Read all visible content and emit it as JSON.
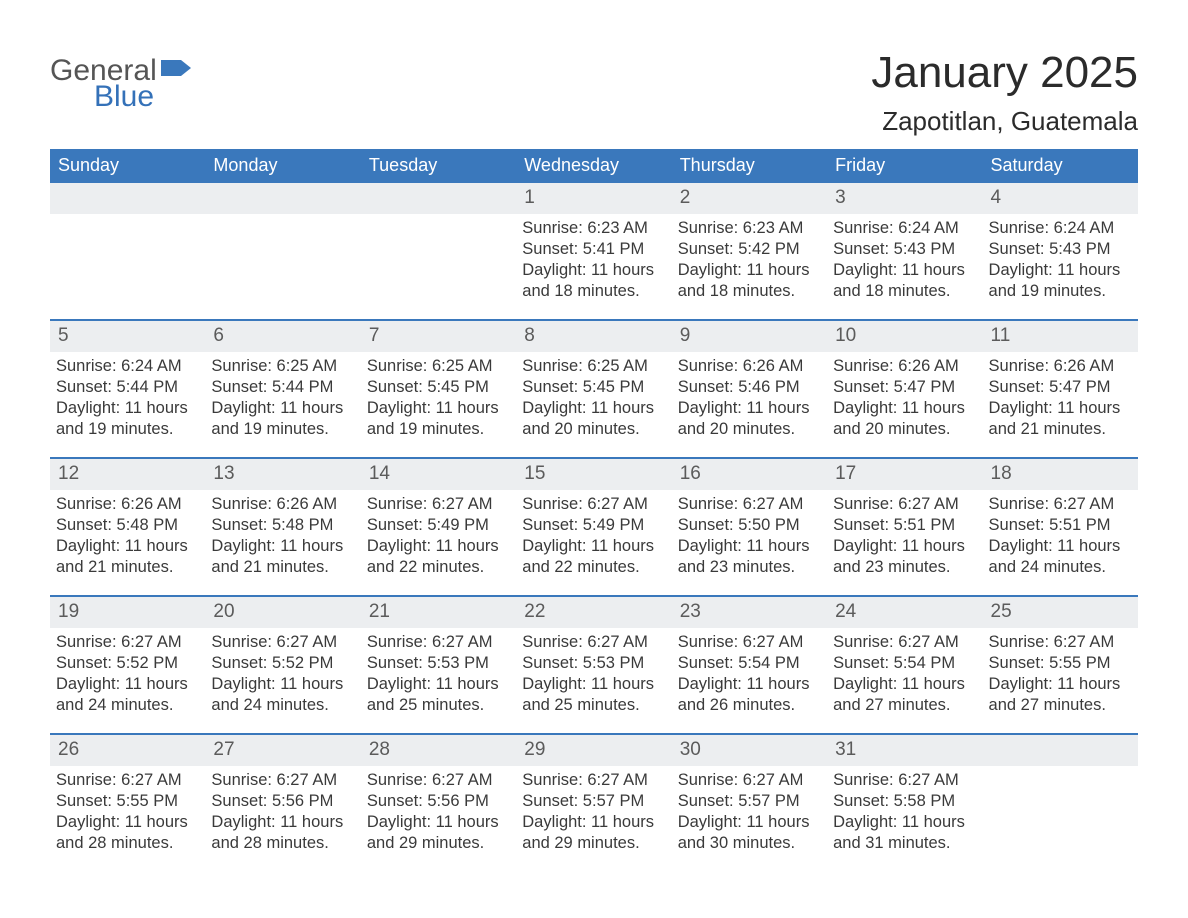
{
  "logo": {
    "general": "General",
    "blue": "Blue"
  },
  "title": "January 2025",
  "location": "Zapotitlan, Guatemala",
  "colors": {
    "header_bg": "#3a78bc",
    "row_stripe": "#eceef0",
    "text": "#3a3a3a",
    "accent": "#3471b8"
  },
  "daysOfWeek": [
    "Sunday",
    "Monday",
    "Tuesday",
    "Wednesday",
    "Thursday",
    "Friday",
    "Saturday"
  ],
  "weeks": [
    [
      null,
      null,
      null,
      {
        "n": "1",
        "sr": "Sunrise: 6:23 AM",
        "ss": "Sunset: 5:41 PM",
        "dl1": "Daylight: 11 hours",
        "dl2": "and 18 minutes."
      },
      {
        "n": "2",
        "sr": "Sunrise: 6:23 AM",
        "ss": "Sunset: 5:42 PM",
        "dl1": "Daylight: 11 hours",
        "dl2": "and 18 minutes."
      },
      {
        "n": "3",
        "sr": "Sunrise: 6:24 AM",
        "ss": "Sunset: 5:43 PM",
        "dl1": "Daylight: 11 hours",
        "dl2": "and 18 minutes."
      },
      {
        "n": "4",
        "sr": "Sunrise: 6:24 AM",
        "ss": "Sunset: 5:43 PM",
        "dl1": "Daylight: 11 hours",
        "dl2": "and 19 minutes."
      }
    ],
    [
      {
        "n": "5",
        "sr": "Sunrise: 6:24 AM",
        "ss": "Sunset: 5:44 PM",
        "dl1": "Daylight: 11 hours",
        "dl2": "and 19 minutes."
      },
      {
        "n": "6",
        "sr": "Sunrise: 6:25 AM",
        "ss": "Sunset: 5:44 PM",
        "dl1": "Daylight: 11 hours",
        "dl2": "and 19 minutes."
      },
      {
        "n": "7",
        "sr": "Sunrise: 6:25 AM",
        "ss": "Sunset: 5:45 PM",
        "dl1": "Daylight: 11 hours",
        "dl2": "and 19 minutes."
      },
      {
        "n": "8",
        "sr": "Sunrise: 6:25 AM",
        "ss": "Sunset: 5:45 PM",
        "dl1": "Daylight: 11 hours",
        "dl2": "and 20 minutes."
      },
      {
        "n": "9",
        "sr": "Sunrise: 6:26 AM",
        "ss": "Sunset: 5:46 PM",
        "dl1": "Daylight: 11 hours",
        "dl2": "and 20 minutes."
      },
      {
        "n": "10",
        "sr": "Sunrise: 6:26 AM",
        "ss": "Sunset: 5:47 PM",
        "dl1": "Daylight: 11 hours",
        "dl2": "and 20 minutes."
      },
      {
        "n": "11",
        "sr": "Sunrise: 6:26 AM",
        "ss": "Sunset: 5:47 PM",
        "dl1": "Daylight: 11 hours",
        "dl2": "and 21 minutes."
      }
    ],
    [
      {
        "n": "12",
        "sr": "Sunrise: 6:26 AM",
        "ss": "Sunset: 5:48 PM",
        "dl1": "Daylight: 11 hours",
        "dl2": "and 21 minutes."
      },
      {
        "n": "13",
        "sr": "Sunrise: 6:26 AM",
        "ss": "Sunset: 5:48 PM",
        "dl1": "Daylight: 11 hours",
        "dl2": "and 21 minutes."
      },
      {
        "n": "14",
        "sr": "Sunrise: 6:27 AM",
        "ss": "Sunset: 5:49 PM",
        "dl1": "Daylight: 11 hours",
        "dl2": "and 22 minutes."
      },
      {
        "n": "15",
        "sr": "Sunrise: 6:27 AM",
        "ss": "Sunset: 5:49 PM",
        "dl1": "Daylight: 11 hours",
        "dl2": "and 22 minutes."
      },
      {
        "n": "16",
        "sr": "Sunrise: 6:27 AM",
        "ss": "Sunset: 5:50 PM",
        "dl1": "Daylight: 11 hours",
        "dl2": "and 23 minutes."
      },
      {
        "n": "17",
        "sr": "Sunrise: 6:27 AM",
        "ss": "Sunset: 5:51 PM",
        "dl1": "Daylight: 11 hours",
        "dl2": "and 23 minutes."
      },
      {
        "n": "18",
        "sr": "Sunrise: 6:27 AM",
        "ss": "Sunset: 5:51 PM",
        "dl1": "Daylight: 11 hours",
        "dl2": "and 24 minutes."
      }
    ],
    [
      {
        "n": "19",
        "sr": "Sunrise: 6:27 AM",
        "ss": "Sunset: 5:52 PM",
        "dl1": "Daylight: 11 hours",
        "dl2": "and 24 minutes."
      },
      {
        "n": "20",
        "sr": "Sunrise: 6:27 AM",
        "ss": "Sunset: 5:52 PM",
        "dl1": "Daylight: 11 hours",
        "dl2": "and 24 minutes."
      },
      {
        "n": "21",
        "sr": "Sunrise: 6:27 AM",
        "ss": "Sunset: 5:53 PM",
        "dl1": "Daylight: 11 hours",
        "dl2": "and 25 minutes."
      },
      {
        "n": "22",
        "sr": "Sunrise: 6:27 AM",
        "ss": "Sunset: 5:53 PM",
        "dl1": "Daylight: 11 hours",
        "dl2": "and 25 minutes."
      },
      {
        "n": "23",
        "sr": "Sunrise: 6:27 AM",
        "ss": "Sunset: 5:54 PM",
        "dl1": "Daylight: 11 hours",
        "dl2": "and 26 minutes."
      },
      {
        "n": "24",
        "sr": "Sunrise: 6:27 AM",
        "ss": "Sunset: 5:54 PM",
        "dl1": "Daylight: 11 hours",
        "dl2": "and 27 minutes."
      },
      {
        "n": "25",
        "sr": "Sunrise: 6:27 AM",
        "ss": "Sunset: 5:55 PM",
        "dl1": "Daylight: 11 hours",
        "dl2": "and 27 minutes."
      }
    ],
    [
      {
        "n": "26",
        "sr": "Sunrise: 6:27 AM",
        "ss": "Sunset: 5:55 PM",
        "dl1": "Daylight: 11 hours",
        "dl2": "and 28 minutes."
      },
      {
        "n": "27",
        "sr": "Sunrise: 6:27 AM",
        "ss": "Sunset: 5:56 PM",
        "dl1": "Daylight: 11 hours",
        "dl2": "and 28 minutes."
      },
      {
        "n": "28",
        "sr": "Sunrise: 6:27 AM",
        "ss": "Sunset: 5:56 PM",
        "dl1": "Daylight: 11 hours",
        "dl2": "and 29 minutes."
      },
      {
        "n": "29",
        "sr": "Sunrise: 6:27 AM",
        "ss": "Sunset: 5:57 PM",
        "dl1": "Daylight: 11 hours",
        "dl2": "and 29 minutes."
      },
      {
        "n": "30",
        "sr": "Sunrise: 6:27 AM",
        "ss": "Sunset: 5:57 PM",
        "dl1": "Daylight: 11 hours",
        "dl2": "and 30 minutes."
      },
      {
        "n": "31",
        "sr": "Sunrise: 6:27 AM",
        "ss": "Sunset: 5:58 PM",
        "dl1": "Daylight: 11 hours",
        "dl2": "and 31 minutes."
      },
      null
    ]
  ]
}
